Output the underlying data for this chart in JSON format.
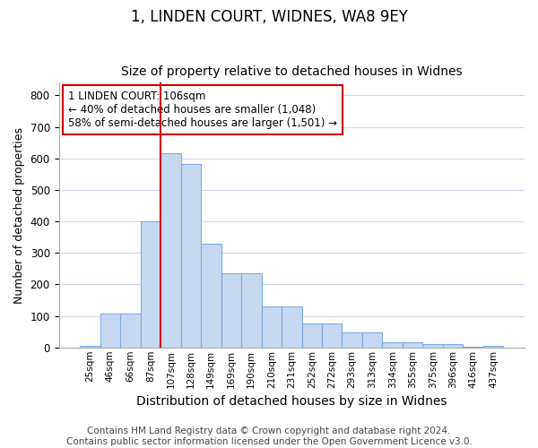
{
  "title": "1, LINDEN COURT, WIDNES, WA8 9EY",
  "subtitle": "Size of property relative to detached houses in Widnes",
  "xlabel": "Distribution of detached houses by size in Widnes",
  "ylabel": "Number of detached properties",
  "footer_line1": "Contains HM Land Registry data © Crown copyright and database right 2024.",
  "footer_line2": "Contains public sector information licensed under the Open Government Licence v3.0.",
  "bar_labels": [
    "25sqm",
    "46sqm",
    "66sqm",
    "87sqm",
    "107sqm",
    "128sqm",
    "149sqm",
    "169sqm",
    "190sqm",
    "210sqm",
    "231sqm",
    "252sqm",
    "272sqm",
    "293sqm",
    "313sqm",
    "334sqm",
    "355sqm",
    "375sqm",
    "396sqm",
    "416sqm",
    "437sqm"
  ],
  "bar_values": [
    5,
    107,
    107,
    400,
    617,
    582,
    328,
    235,
    235,
    130,
    130,
    75,
    75,
    47,
    47,
    17,
    17,
    12,
    12,
    3,
    6
  ],
  "bar_color": "#c6d9f0",
  "bar_edge_color": "#7aabe6",
  "vline_x_index": 4,
  "vline_color": "#cc0000",
  "annotation_text": "1 LINDEN COURT: 106sqm\n← 40% of detached houses are smaller (1,048)\n58% of semi-detached houses are larger (1,501) →",
  "annotation_box_color": "#ffffff",
  "annotation_box_edge_color": "#cc0000",
  "ylim": [
    0,
    840
  ],
  "yticks": [
    0,
    100,
    200,
    300,
    400,
    500,
    600,
    700,
    800
  ],
  "title_fontsize": 12,
  "subtitle_fontsize": 10,
  "xlabel_fontsize": 10,
  "ylabel_fontsize": 9,
  "annotation_fontsize": 8.5,
  "footer_fontsize": 7.5,
  "background_color": "#ffffff",
  "grid_color": "#d0d8e8"
}
